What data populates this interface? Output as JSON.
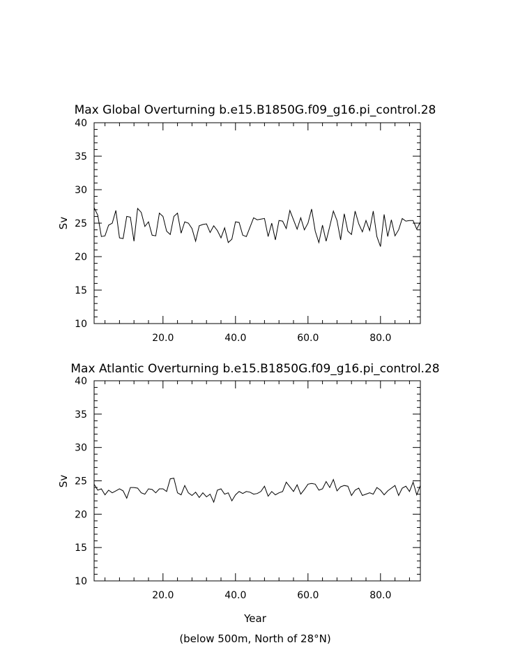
{
  "chart_data": [
    {
      "type": "line",
      "title": "Max Global Overturning b.e15.B1850G.f09_g16.pi_control.28",
      "xlabel": "",
      "ylabel": "Sv",
      "xlim": [
        1,
        91
      ],
      "ylim": [
        10,
        40
      ],
      "grid": false,
      "xticks": [
        20,
        40,
        60,
        80
      ],
      "xtick_labels": [
        "20.0",
        "40.0",
        "60.0",
        "80.0"
      ],
      "yticks": [
        10,
        15,
        20,
        25,
        30,
        35,
        40
      ],
      "ytick_labels": [
        "10",
        "15",
        "20",
        "25",
        "30",
        "35",
        "40"
      ],
      "series": [
        {
          "x": [
            1,
            2,
            3,
            4,
            5,
            6,
            7,
            8,
            9,
            10,
            11,
            12,
            13,
            14,
            15,
            16,
            17,
            18,
            19,
            20,
            21,
            22,
            23,
            24,
            25,
            26,
            27,
            28,
            29,
            30,
            31,
            32,
            33,
            34,
            35,
            36,
            37,
            38,
            39,
            40,
            41,
            42,
            43,
            44,
            45,
            46,
            47,
            48,
            49,
            50,
            51,
            52,
            53,
            54,
            55,
            56,
            57,
            58,
            59,
            60,
            61,
            62,
            63,
            64,
            65,
            66,
            67,
            68,
            69,
            70,
            71,
            72,
            73,
            74,
            75,
            76,
            77,
            78,
            79,
            80,
            81,
            82,
            83,
            84,
            85,
            86,
            87,
            88,
            89,
            90,
            91
          ],
          "values": [
            27.3,
            26.2,
            23.0,
            23.1,
            24.7,
            25.0,
            26.9,
            22.8,
            22.7,
            26.0,
            25.9,
            22.3,
            27.2,
            26.6,
            24.5,
            25.2,
            23.2,
            23.1,
            26.5,
            26.0,
            23.8,
            23.3,
            26.0,
            26.5,
            23.5,
            25.2,
            25.0,
            24.2,
            22.3,
            24.6,
            24.8,
            24.9,
            23.6,
            24.6,
            23.9,
            22.8,
            24.3,
            22.1,
            22.6,
            25.2,
            25.1,
            23.2,
            23.0,
            24.4,
            25.8,
            25.5,
            25.6,
            25.7,
            23.0,
            25.0,
            22.5,
            25.4,
            25.3,
            24.2,
            26.9,
            25.5,
            24.1,
            25.8,
            24.0,
            25.0,
            27.1,
            23.8,
            22.1,
            24.7,
            22.3,
            24.5,
            26.8,
            25.4,
            22.5,
            26.4,
            23.8,
            23.3,
            26.8,
            24.9,
            23.7,
            25.4,
            23.9,
            26.8,
            23.0,
            21.5,
            26.3,
            23.0,
            25.5,
            23.1,
            24.0,
            25.7,
            25.3,
            25.4,
            25.4,
            24.1,
            25.2
          ]
        }
      ]
    },
    {
      "type": "line",
      "title": "Max Atlantic Overturning b.e15.B1850G.f09_g16.pi_control.28",
      "xlabel": "Year",
      "ylabel": "Sv",
      "xlim": [
        1,
        91
      ],
      "ylim": [
        10,
        40
      ],
      "grid": false,
      "xticks": [
        20,
        40,
        60,
        80
      ],
      "xtick_labels": [
        "20.0",
        "40.0",
        "60.0",
        "80.0"
      ],
      "yticks": [
        10,
        15,
        20,
        25,
        30,
        35,
        40
      ],
      "ytick_labels": [
        "10",
        "15",
        "20",
        "25",
        "30",
        "35",
        "40"
      ],
      "series": [
        {
          "x": [
            1,
            2,
            3,
            4,
            5,
            6,
            7,
            8,
            9,
            10,
            11,
            12,
            13,
            14,
            15,
            16,
            17,
            18,
            19,
            20,
            21,
            22,
            23,
            24,
            25,
            26,
            27,
            28,
            29,
            30,
            31,
            32,
            33,
            34,
            35,
            36,
            37,
            38,
            39,
            40,
            41,
            42,
            43,
            44,
            45,
            46,
            47,
            48,
            49,
            50,
            51,
            52,
            53,
            54,
            55,
            56,
            57,
            58,
            59,
            60,
            61,
            62,
            63,
            64,
            65,
            66,
            67,
            68,
            69,
            70,
            71,
            72,
            73,
            74,
            75,
            76,
            77,
            78,
            79,
            80,
            81,
            82,
            83,
            84,
            85,
            86,
            87,
            88,
            89,
            90,
            91
          ],
          "values": [
            24.5,
            23.6,
            23.8,
            22.9,
            23.6,
            23.2,
            23.5,
            23.8,
            23.5,
            22.4,
            24.0,
            24.0,
            23.9,
            23.2,
            23.0,
            23.8,
            23.7,
            23.2,
            23.8,
            23.8,
            23.4,
            25.3,
            25.4,
            23.2,
            22.9,
            24.3,
            23.2,
            22.8,
            23.3,
            22.5,
            23.2,
            22.6,
            23.0,
            21.8,
            23.6,
            23.8,
            23.0,
            23.2,
            22.0,
            22.9,
            23.4,
            23.1,
            23.4,
            23.3,
            23.0,
            23.1,
            23.4,
            24.2,
            22.7,
            23.4,
            22.9,
            23.2,
            23.4,
            24.8,
            24.1,
            23.4,
            24.4,
            23.0,
            23.7,
            24.5,
            24.6,
            24.5,
            23.6,
            23.8,
            24.9,
            24.0,
            25.2,
            23.5,
            24.1,
            24.3,
            24.2,
            22.8,
            23.6,
            23.9,
            22.8,
            23.0,
            23.2,
            23.0,
            24.0,
            23.6,
            22.9,
            23.5,
            23.9,
            24.3,
            22.8,
            23.9,
            24.2,
            23.4,
            24.8,
            22.9,
            24.3
          ]
        }
      ]
    }
  ],
  "footer": {
    "note": "(below 500m, North of 28°N)"
  }
}
